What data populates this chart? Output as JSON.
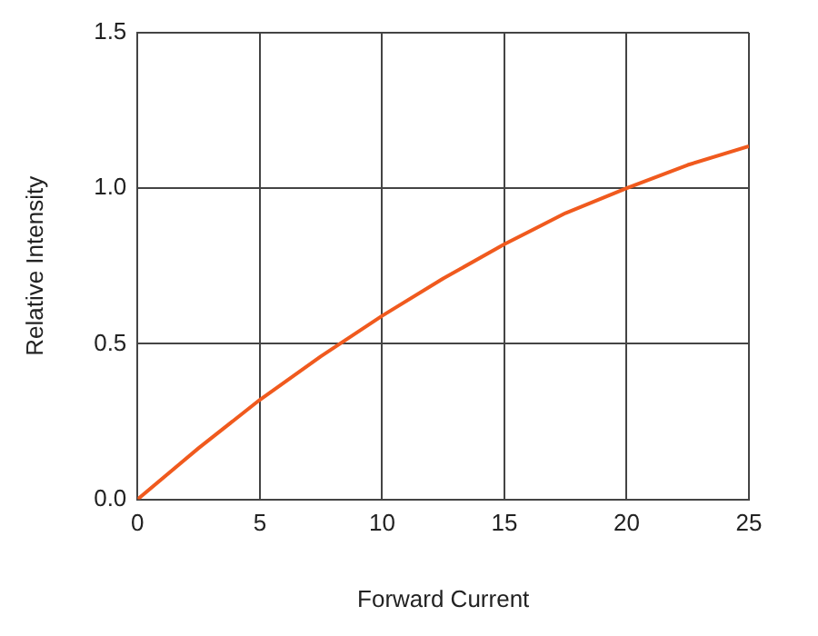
{
  "chart_data": {
    "type": "line",
    "xlabel": "Forward Current",
    "ylabel": "Relative Intensity",
    "x": [
      0,
      2.5,
      5,
      7.5,
      10,
      12.5,
      15,
      17.5,
      20,
      22.5,
      25
    ],
    "series": [
      {
        "color": "#f05a1e",
        "values": [
          0,
          0.165,
          0.32,
          0.46,
          0.59,
          0.71,
          0.82,
          0.92,
          1.0,
          1.075,
          1.135
        ]
      }
    ],
    "xlim": [
      0,
      25
    ],
    "xticks": [
      0,
      5,
      10,
      15,
      20,
      25
    ],
    "ylim": [
      0,
      1.5
    ],
    "yticks": [
      {
        "value": 0,
        "label": "0.0"
      },
      {
        "value": 0.5,
        "label": "0.5"
      },
      {
        "value": 1,
        "label": "1.0"
      },
      {
        "value": 1.5,
        "label": "1.5"
      }
    ],
    "grid": true,
    "marker": "none",
    "line_style": "solid"
  }
}
